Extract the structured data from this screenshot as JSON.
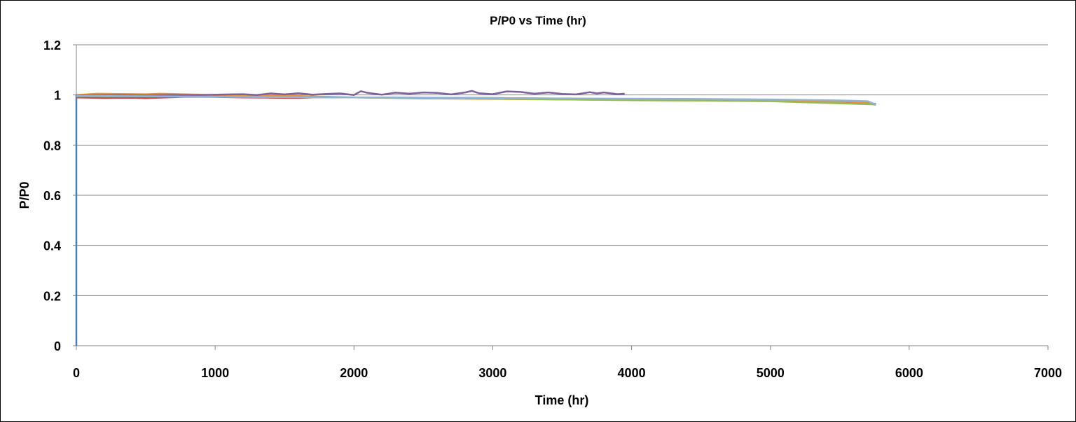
{
  "chart_data": {
    "type": "line",
    "title": "P/P0 vs Time (hr)",
    "xlabel": "Time (hr)",
    "ylabel": "P/P0",
    "xlim": [
      0,
      7000
    ],
    "ylim": [
      0,
      1.2
    ],
    "xticks": [
      0,
      1000,
      2000,
      3000,
      4000,
      5000,
      6000,
      7000
    ],
    "yticks": [
      0,
      0.2,
      0.4,
      0.6,
      0.8,
      1,
      1.2
    ],
    "ytick_labels": [
      "0",
      "0.2",
      "0.4",
      "0.6",
      "0.8",
      "1",
      "1.2"
    ],
    "grid": "horizontal",
    "legend": "none",
    "series": [
      {
        "color": "#4a7ebb",
        "x": [
          0,
          0,
          500,
          1000,
          2000,
          3000,
          4000,
          5000,
          5760
        ],
        "y": [
          0,
          1.0,
          0.995,
          0.993,
          0.99,
          0.988,
          0.983,
          0.978,
          0.965
        ]
      },
      {
        "color": "#be4b48",
        "x": [
          0,
          200,
          400,
          500,
          800,
          1000,
          1200,
          1400,
          1600,
          1700
        ],
        "y": [
          0.99,
          0.988,
          0.989,
          0.987,
          0.993,
          0.992,
          0.99,
          0.989,
          0.988,
          0.99
        ]
      },
      {
        "color": "#e6933a",
        "x": [
          0,
          150,
          300,
          500,
          600,
          1000,
          1500,
          2000,
          2500,
          3000,
          3500,
          4000,
          4500,
          5000,
          5500,
          5700,
          5760
        ],
        "y": [
          1.0,
          1.005,
          1.004,
          1.003,
          1.005,
          1.0,
          0.997,
          0.99,
          0.986,
          0.984,
          0.982,
          0.98,
          0.978,
          0.976,
          0.973,
          0.97,
          0.96
        ]
      },
      {
        "color": "#98b954",
        "x": [
          0,
          500,
          1000,
          2000,
          3000,
          4000,
          5000,
          5760
        ],
        "y": [
          0.995,
          0.994,
          0.993,
          0.99,
          0.985,
          0.979,
          0.975,
          0.962
        ]
      },
      {
        "color": "#7d60a0",
        "x": [
          0,
          100,
          300,
          500,
          700,
          900,
          1100,
          1200,
          1300,
          1400,
          1500,
          1600,
          1700,
          1800,
          1900,
          2000,
          2050,
          2100,
          2200,
          2300,
          2400,
          2500,
          2600,
          2700,
          2800,
          2850,
          2900,
          3000,
          3100,
          3200,
          3300,
          3400,
          3500,
          3600,
          3700,
          3750,
          3800,
          3900,
          3950
        ],
        "y": [
          0.997,
          0.998,
          0.999,
          0.998,
          1.0,
          1.0,
          1.002,
          1.003,
          1.0,
          1.006,
          1.002,
          1.007,
          1.001,
          1.004,
          1.006,
          1.0,
          1.015,
          1.008,
          1.001,
          1.009,
          1.005,
          1.01,
          1.008,
          1.002,
          1.01,
          1.016,
          1.007,
          1.003,
          1.014,
          1.012,
          1.005,
          1.01,
          1.004,
          1.002,
          1.011,
          1.006,
          1.01,
          1.003,
          1.005
        ]
      },
      {
        "color": "#92b3d6",
        "x": [
          0,
          500,
          1000,
          2000,
          3000,
          4000,
          4500,
          5000,
          5500,
          5700,
          5760
        ],
        "y": [
          0.996,
          0.995,
          0.993,
          0.99,
          0.987,
          0.985,
          0.984,
          0.982,
          0.978,
          0.975,
          0.962
        ]
      }
    ]
  }
}
